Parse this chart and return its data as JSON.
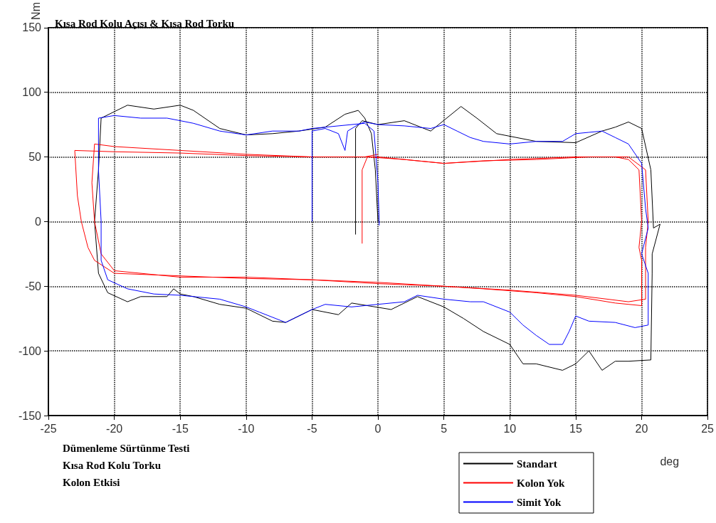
{
  "chart_data": {
    "type": "line",
    "title": "Kısa Rod Kolu Açısı & Kısa Rod Torku",
    "xlabel": "deg",
    "ylabel": "Nm",
    "annotations": [
      "Dümenleme Sürtünme Testi",
      "Kısa Rod Kolu Torku",
      "Kolon Etkisi"
    ],
    "xlim": [
      -25,
      25
    ],
    "xticks": [
      -25,
      -20,
      -15,
      -10,
      -5,
      0,
      5,
      10,
      15,
      20,
      25
    ],
    "ylim": [
      -150,
      150
    ],
    "yticks": [
      -150,
      -100,
      -50,
      0,
      50,
      100,
      150
    ],
    "grid": true,
    "legend": "bottom right",
    "marker": "none",
    "line_style": "solid",
    "series": [
      {
        "name": "Standart",
        "color": "#000000",
        "x": [
          -1.7,
          -1.7,
          -1.2,
          0,
          2,
          4,
          6.3,
          7.5,
          9,
          12,
          15,
          17,
          18,
          19,
          20,
          20.7,
          20.9,
          21.4,
          20.8,
          20.8,
          20.7,
          19,
          18,
          17,
          16,
          15,
          14,
          12,
          11,
          10,
          8,
          6.5,
          5,
          3,
          1,
          -2,
          -3,
          -5,
          -7,
          -8,
          -10,
          -12,
          -14,
          -15,
          -15.5,
          -16,
          -18,
          -19,
          -20.5,
          -21.2,
          -21.5,
          -21.2,
          -21,
          -20,
          -19,
          -17,
          -15,
          -14,
          -12,
          -10,
          -8,
          -6,
          -4,
          -2.5,
          -1.5,
          -1,
          -0.5,
          -0.2,
          0
        ],
        "values": [
          -10,
          72,
          78,
          75,
          78,
          70,
          89,
          80,
          68,
          62,
          61,
          70,
          73,
          77,
          72,
          40,
          -5,
          -2,
          -25,
          -40,
          -107,
          -108,
          -108,
          -115,
          -100,
          -110,
          -115,
          -110,
          -110,
          -95,
          -85,
          -75,
          -66,
          -58,
          -68,
          -63,
          -72,
          -68,
          -78,
          -77,
          -67,
          -64,
          -58,
          -56,
          -52,
          -58,
          -58,
          -62,
          -55,
          -40,
          0,
          40,
          80,
          85,
          90,
          87,
          90,
          86,
          72,
          67,
          68,
          70,
          73,
          83,
          86,
          80,
          68,
          40,
          0
        ]
      },
      {
        "name": "Kolon Yok",
        "color": "#ff0000",
        "x": [
          -1.2,
          -1.2,
          -0.8,
          2,
          5,
          8,
          12,
          16,
          18,
          19,
          19.8,
          20,
          19.8,
          20,
          20,
          18,
          15,
          12,
          8,
          5,
          0,
          -5,
          -10,
          -15,
          -20,
          -21.5,
          -22,
          -22.5,
          -22.8,
          -23,
          -20,
          -15,
          -10,
          -5,
          0,
          5,
          10,
          15,
          19,
          20.3,
          20.5,
          20.3,
          20.3,
          19,
          15,
          10,
          5,
          0,
          -5,
          -10,
          -15,
          -20,
          -21,
          -21.5,
          -21.7,
          -21.5,
          -20,
          -15,
          -10,
          -5,
          -1,
          0
        ],
        "values": [
          -17,
          40,
          50,
          48,
          45,
          47,
          48,
          50,
          50,
          48,
          40,
          0,
          -20,
          -30,
          -65,
          -63,
          -58,
          -55,
          -52,
          -50,
          -47,
          -45,
          -44,
          -42,
          -40,
          -30,
          -20,
          0,
          20,
          55,
          54,
          53,
          51,
          50,
          50,
          45,
          48,
          50,
          50,
          40,
          0,
          -20,
          -60,
          -62,
          -57,
          -53,
          -50,
          -48,
          -45,
          -43,
          -43,
          -38,
          -25,
          0,
          30,
          60,
          58,
          55,
          52,
          50,
          50,
          52
        ]
      },
      {
        "name": "Simit Yok",
        "color": "#0000ff",
        "x": [
          -5,
          -5,
          -4,
          -3,
          -2.5,
          -2.3,
          -1.5,
          -1,
          0,
          2,
          4,
          5,
          6,
          7,
          8,
          10,
          12,
          14,
          15,
          16,
          17,
          18,
          19,
          20,
          20.3,
          20.5,
          20,
          20.5,
          20.5,
          19.5,
          18,
          16,
          15,
          14.5,
          14,
          13,
          12,
          11,
          10,
          8,
          7,
          5,
          3,
          2,
          0,
          -2,
          -4,
          -5,
          -7,
          -9,
          -10,
          -12,
          -15,
          -17,
          -19,
          -20.5,
          -21,
          -21,
          -21.2,
          -21.2,
          -20,
          -18,
          -16,
          -14,
          -12,
          -10,
          -8,
          -6,
          -5,
          -1,
          -0.3,
          0,
          0.1
        ],
        "values": [
          0,
          70,
          72,
          68,
          55,
          70,
          75,
          77,
          75,
          74,
          72,
          75,
          70,
          65,
          62,
          60,
          62,
          62,
          68,
          69,
          70,
          65,
          60,
          45,
          10,
          -5,
          -25,
          -40,
          -80,
          -82,
          -78,
          -77,
          -73,
          -85,
          -95,
          -95,
          -88,
          -80,
          -70,
          -62,
          -62,
          -60,
          -57,
          -62,
          -64,
          -66,
          -64,
          -68,
          -78,
          -70,
          -66,
          -60,
          -57,
          -56,
          -52,
          -45,
          -30,
          0,
          40,
          80,
          82,
          80,
          80,
          76,
          70,
          67,
          70,
          70,
          72,
          76,
          70,
          30,
          -3
        ]
      }
    ]
  }
}
